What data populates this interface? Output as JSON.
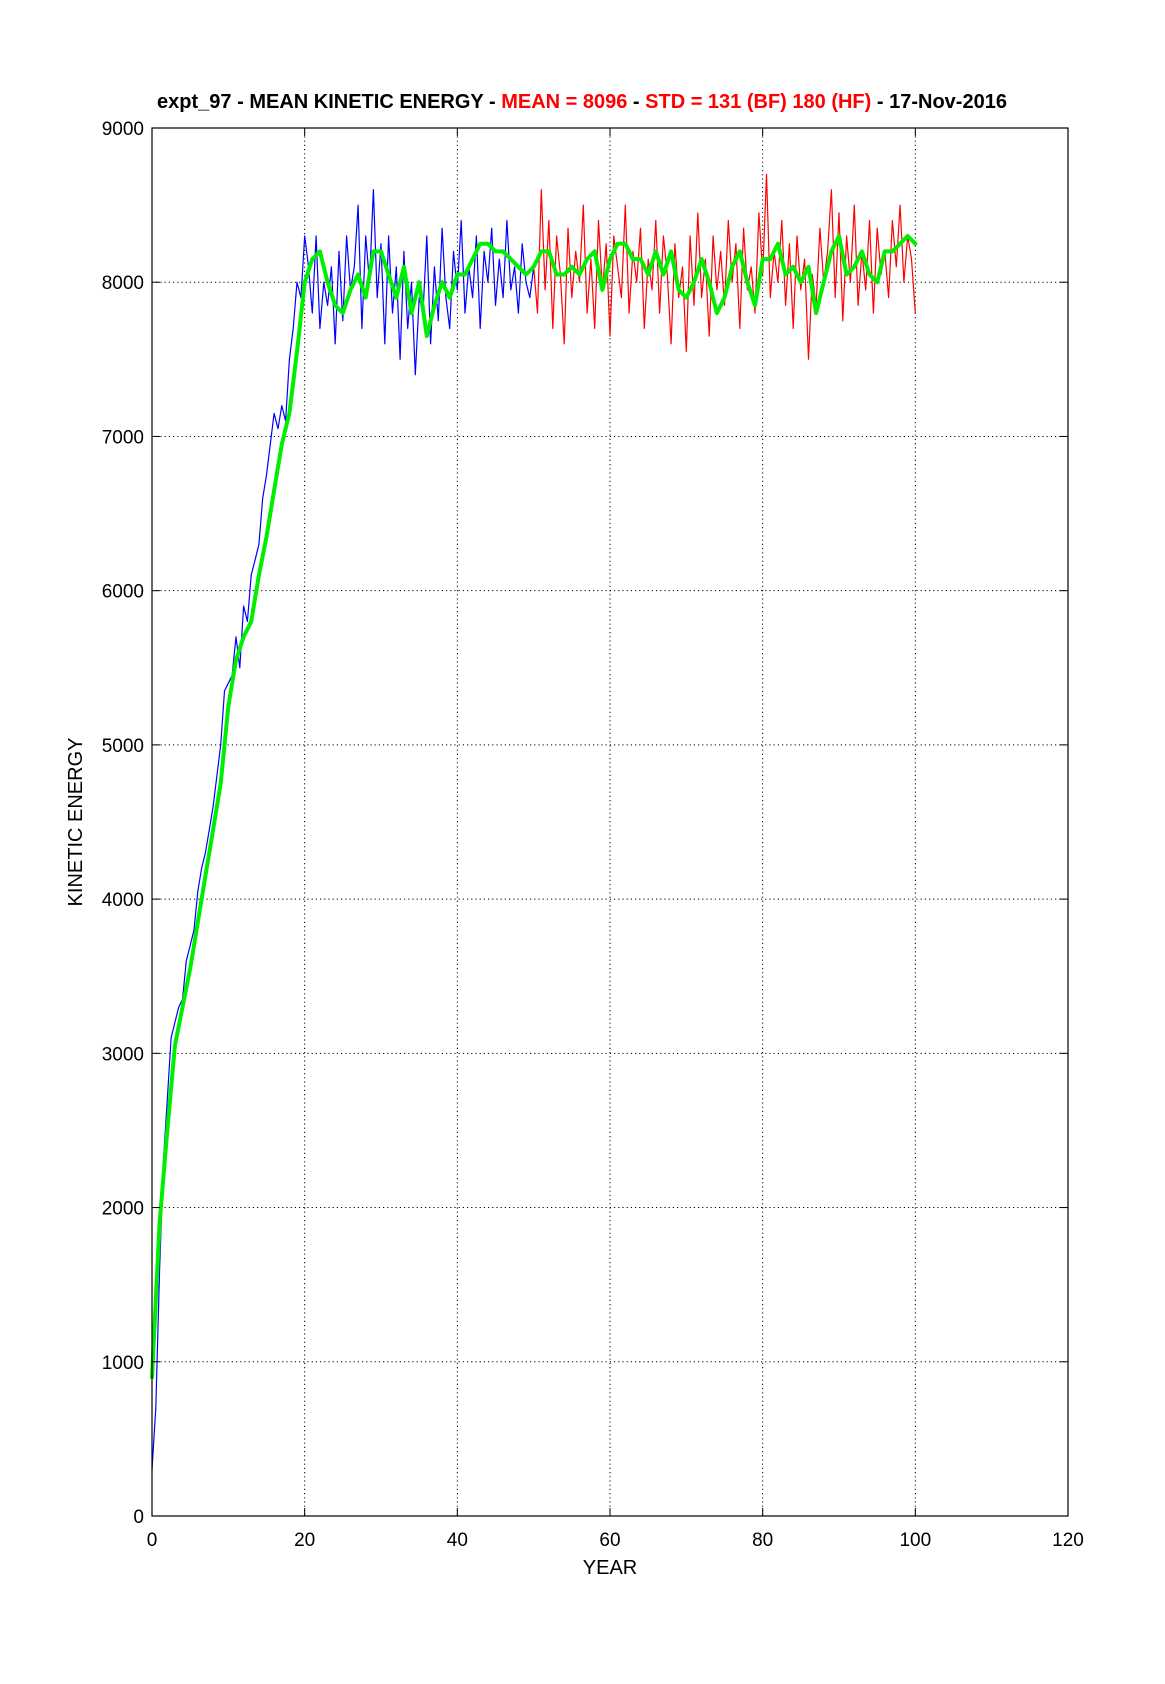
{
  "chart_data": {
    "type": "line",
    "title": {
      "prefix": "expt_97 - MEAN KINETIC ENERGY - ",
      "mean_label": "MEAN =  8096",
      "sep1": " - ",
      "std_label": "STD =  131 (BF)  180 (HF)",
      "sep2": " - ",
      "date": "17-Nov-2016"
    },
    "xlabel": "YEAR",
    "ylabel": "KINETIC ENERGY",
    "xlim": [
      0,
      120
    ],
    "ylim": [
      0,
      9000
    ],
    "xticks": [
      0,
      20,
      40,
      60,
      80,
      100,
      120
    ],
    "yticks": [
      0,
      1000,
      2000,
      3000,
      4000,
      5000,
      6000,
      7000,
      8000,
      9000
    ],
    "grid": true,
    "colors": {
      "title_text": "#000000",
      "title_highlight": "#ff0000",
      "spinup_series": "#0000ff",
      "analysis_series": "#ff0000",
      "smoothed_series": "#00ee00",
      "grid": "#000000"
    },
    "series": [
      {
        "key": "spinup",
        "x": [
          0.0,
          0.5,
          1.0,
          1.5,
          2.0,
          2.5,
          3.0,
          3.5,
          4.0,
          4.5,
          5.0,
          5.5,
          6.0,
          6.5,
          7.0,
          7.5,
          8.0,
          8.5,
          9.0,
          9.5,
          10.0,
          10.5,
          11.0,
          11.5,
          12.0,
          12.5,
          13.0,
          13.5,
          14.0,
          14.5,
          15.0,
          15.5,
          16.0,
          16.5,
          17.0,
          17.5,
          18.0,
          18.5,
          19.0,
          19.5,
          20.0,
          20.5,
          21.0,
          21.5,
          22.0,
          22.5,
          23.0,
          23.5,
          24.0,
          24.5,
          25.0,
          25.5,
          26.0,
          26.5,
          27.0,
          27.5,
          28.0,
          28.5,
          29.0,
          29.5,
          30.0,
          30.5,
          31.0,
          31.5,
          32.0,
          32.5,
          33.0,
          33.5,
          34.0,
          34.5,
          35.0,
          35.5,
          36.0,
          36.5,
          37.0,
          37.5,
          38.0,
          38.5,
          39.0,
          39.5,
          40.0,
          40.5,
          41.0,
          41.5,
          42.0,
          42.5,
          43.0,
          43.5,
          44.0,
          44.5,
          45.0,
          45.5,
          46.0,
          46.5,
          47.0,
          47.5,
          48.0,
          48.5,
          49.0,
          49.5,
          50.0
        ],
        "y": [
          300,
          700,
          1600,
          2300,
          2700,
          3100,
          3200,
          3300,
          3350,
          3600,
          3700,
          3800,
          4050,
          4200,
          4300,
          4450,
          4600,
          4800,
          5000,
          5350,
          5400,
          5450,
          5700,
          5500,
          5900,
          5800,
          6100,
          6200,
          6300,
          6600,
          6750,
          6950,
          7150,
          7050,
          7200,
          7100,
          7500,
          7700,
          8000,
          7900,
          8300,
          8100,
          7800,
          8300,
          7700,
          8000,
          7850,
          8100,
          7600,
          8200,
          7750,
          8300,
          7950,
          8100,
          8500,
          7700,
          8300,
          8000,
          8600,
          7900,
          8250,
          7600,
          8300,
          7800,
          8100,
          7500,
          8200,
          7700,
          8000,
          7400,
          7900,
          7800,
          8300,
          7600,
          8100,
          7750,
          8350,
          7900,
          7700,
          8200,
          7950,
          8400,
          7800,
          8100,
          7900,
          8300,
          7700,
          8200,
          8000,
          8350,
          7850,
          8150,
          7900,
          8400,
          7950,
          8100,
          7800,
          8250,
          8000,
          7900,
          8100
        ]
      },
      {
        "key": "analysis",
        "x": [
          50.0,
          50.5,
          51.0,
          51.5,
          52.0,
          52.5,
          53.0,
          53.5,
          54.0,
          54.5,
          55.0,
          55.5,
          56.0,
          56.5,
          57.0,
          57.5,
          58.0,
          58.5,
          59.0,
          59.5,
          60.0,
          60.5,
          61.0,
          61.5,
          62.0,
          62.5,
          63.0,
          63.5,
          64.0,
          64.5,
          65.0,
          65.5,
          66.0,
          66.5,
          67.0,
          67.5,
          68.0,
          68.5,
          69.0,
          69.5,
          70.0,
          70.5,
          71.0,
          71.5,
          72.0,
          72.5,
          73.0,
          73.5,
          74.0,
          74.5,
          75.0,
          75.5,
          76.0,
          76.5,
          77.0,
          77.5,
          78.0,
          78.5,
          79.0,
          79.5,
          80.0,
          80.5,
          81.0,
          81.5,
          82.0,
          82.5,
          83.0,
          83.5,
          84.0,
          84.5,
          85.0,
          85.5,
          86.0,
          86.5,
          87.0,
          87.5,
          88.0,
          88.5,
          89.0,
          89.5,
          90.0,
          90.5,
          91.0,
          91.5,
          92.0,
          92.5,
          93.0,
          93.5,
          94.0,
          94.5,
          95.0,
          95.5,
          96.0,
          96.5,
          97.0,
          97.5,
          98.0,
          98.5,
          99.0,
          99.5,
          100.0
        ],
        "y": [
          8100,
          7800,
          8600,
          7950,
          8400,
          7700,
          8300,
          8050,
          7600,
          8350,
          7900,
          8200,
          8000,
          8500,
          7800,
          8150,
          7700,
          8400,
          7950,
          8250,
          7650,
          8300,
          8100,
          7900,
          8500,
          7800,
          8200,
          8000,
          8350,
          7700,
          8150,
          7950,
          8400,
          7800,
          8300,
          8050,
          7600,
          8250,
          7900,
          8100,
          7550,
          8300,
          7850,
          8450,
          7900,
          8150,
          7650,
          8300,
          7950,
          8200,
          7850,
          8400,
          8000,
          8250,
          7700,
          8350,
          7950,
          8100,
          7800,
          8450,
          8050,
          8700,
          7900,
          8200,
          8000,
          8400,
          7850,
          8250,
          7700,
          8300,
          7950,
          8150,
          7500,
          8050,
          7850,
          8350,
          8000,
          8200,
          8600,
          7900,
          8450,
          7750,
          8300,
          8000,
          8500,
          7850,
          8200,
          7950,
          8400,
          7800,
          8350,
          8050,
          8200,
          7900,
          8400,
          8100,
          8500,
          8000,
          8300,
          8150,
          7800
        ]
      },
      {
        "key": "smoothed",
        "x": [
          0.0,
          1.0,
          2.0,
          3.0,
          4.0,
          5.0,
          6.0,
          7.0,
          8.0,
          9.0,
          10.0,
          11.0,
          12.0,
          13.0,
          14.0,
          15.0,
          16.0,
          17.0,
          18.0,
          19.0,
          20.0,
          21.0,
          22.0,
          23.0,
          24.0,
          25.0,
          26.0,
          27.0,
          28.0,
          29.0,
          30.0,
          31.0,
          32.0,
          33.0,
          34.0,
          35.0,
          36.0,
          37.0,
          38.0,
          39.0,
          40.0,
          41.0,
          42.0,
          43.0,
          44.0,
          45.0,
          46.0,
          47.0,
          48.0,
          49.0,
          50.0,
          51.0,
          52.0,
          53.0,
          54.0,
          55.0,
          56.0,
          57.0,
          58.0,
          59.0,
          60.0,
          61.0,
          62.0,
          63.0,
          64.0,
          65.0,
          66.0,
          67.0,
          68.0,
          69.0,
          70.0,
          71.0,
          72.0,
          73.0,
          74.0,
          75.0,
          76.0,
          77.0,
          78.0,
          79.0,
          80.0,
          81.0,
          82.0,
          83.0,
          84.0,
          85.0,
          86.0,
          87.0,
          88.0,
          89.0,
          90.0,
          91.0,
          92.0,
          93.0,
          94.0,
          95.0,
          96.0,
          97.0,
          98.0,
          99.0,
          100.0
        ],
        "y": [
          900,
          1900,
          2500,
          3050,
          3300,
          3550,
          3850,
          4150,
          4450,
          4750,
          5250,
          5550,
          5700,
          5800,
          6100,
          6350,
          6650,
          6950,
          7150,
          7550,
          8000,
          8150,
          8200,
          8000,
          7850,
          7800,
          7950,
          8050,
          7900,
          8200,
          8200,
          8050,
          7900,
          8100,
          7800,
          8000,
          7650,
          7850,
          8000,
          7900,
          8050,
          8050,
          8150,
          8250,
          8250,
          8200,
          8200,
          8150,
          8100,
          8050,
          8100,
          8200,
          8200,
          8050,
          8050,
          8100,
          8050,
          8150,
          8200,
          7950,
          8150,
          8250,
          8250,
          8150,
          8150,
          8050,
          8200,
          8050,
          8200,
          7950,
          7900,
          8000,
          8150,
          8000,
          7800,
          7900,
          8100,
          8200,
          8000,
          7850,
          8150,
          8150,
          8250,
          8050,
          8100,
          8000,
          8100,
          7800,
          8000,
          8200,
          8300,
          8050,
          8100,
          8200,
          8050,
          8000,
          8200,
          8200,
          8250,
          8300,
          8250
        ]
      }
    ]
  }
}
